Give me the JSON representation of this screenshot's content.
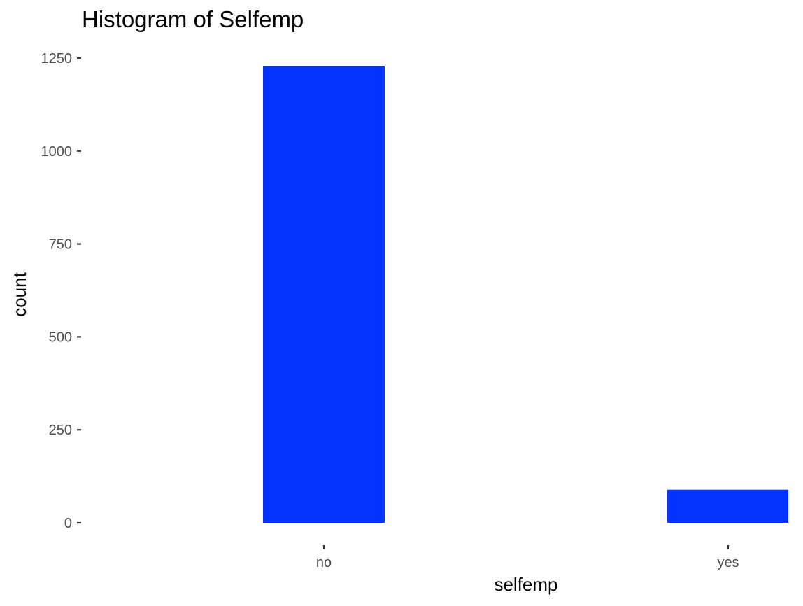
{
  "chart_data": {
    "type": "bar",
    "title": "Histogram of Selfemp",
    "xlabel": "selfemp",
    "ylabel": "count",
    "categories": [
      "no",
      "yes"
    ],
    "values": [
      1228,
      89
    ],
    "ylim": [
      0,
      1250
    ],
    "yticks": [
      0,
      250,
      500,
      750,
      1000,
      1250
    ],
    "ytick_labels": [
      "0",
      "250",
      "500",
      "750",
      "1000",
      "1250"
    ],
    "grid": false,
    "legend": "none",
    "bar_color": "#0433ff"
  }
}
